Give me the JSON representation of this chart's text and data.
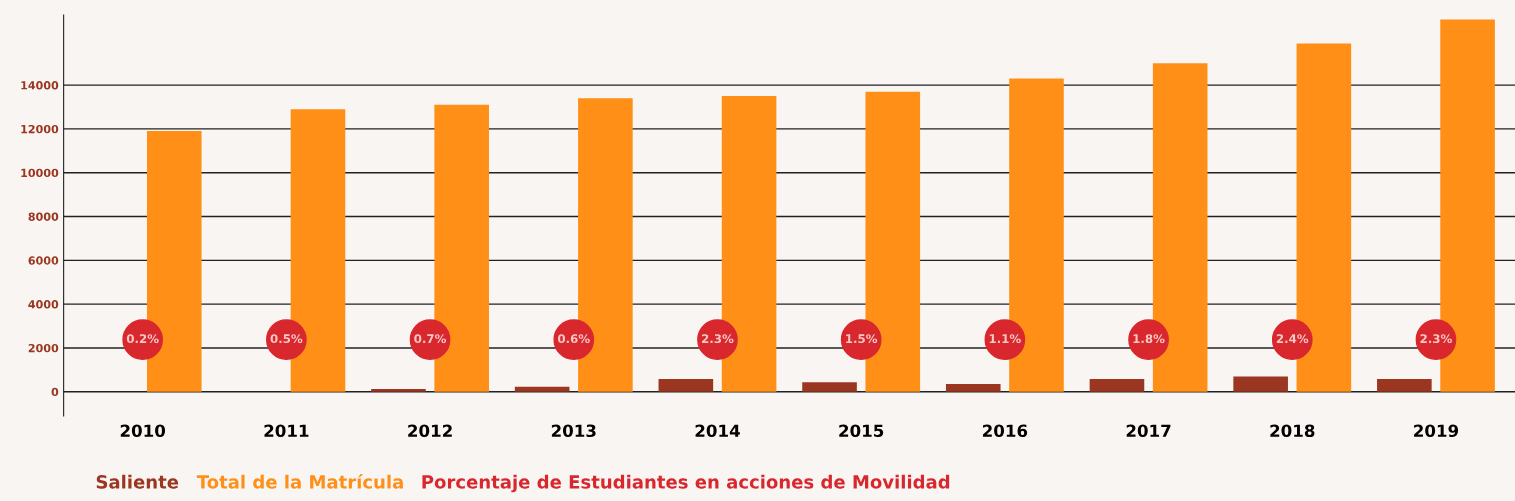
{
  "chart_data": {
    "type": "bar",
    "categories": [
      "2010",
      "2011",
      "2012",
      "2013",
      "2014",
      "2015",
      "2016",
      "2017",
      "2018",
      "2019"
    ],
    "series": [
      {
        "name": "Saliente",
        "color": "#9b3620",
        "values": [
          0,
          0,
          130,
          230,
          580,
          430,
          350,
          580,
          700,
          580
        ]
      },
      {
        "name": "Total de la Matrícula",
        "color": "#ff8f16",
        "values": [
          11900,
          12900,
          13100,
          13400,
          13500,
          13700,
          14300,
          15000,
          15900,
          17000
        ]
      }
    ],
    "annotations": [
      {
        "text": "0.2%",
        "x": "2010"
      },
      {
        "text": "0.5%",
        "x": "2011"
      },
      {
        "text": "0.7%",
        "x": "2012"
      },
      {
        "text": "0.6%",
        "x": "2013"
      },
      {
        "text": "2.3%",
        "x": "2014"
      },
      {
        "text": "1.5%",
        "x": "2015"
      },
      {
        "text": "1.1%",
        "x": "2016"
      },
      {
        "text": "1.8%",
        "x": "2017"
      },
      {
        "text": "2.4%",
        "x": "2018"
      },
      {
        "text": "2.3%",
        "x": "2019"
      },
      "Porcentaje de Estudiantes en acciones de Movilidad"
    ],
    "ylim": [
      -1100,
      17200
    ],
    "yticks": [
      0,
      2000,
      4000,
      6000,
      8000,
      10000,
      12000,
      14000
    ],
    "grid": "y",
    "legend": "bottom left"
  }
}
